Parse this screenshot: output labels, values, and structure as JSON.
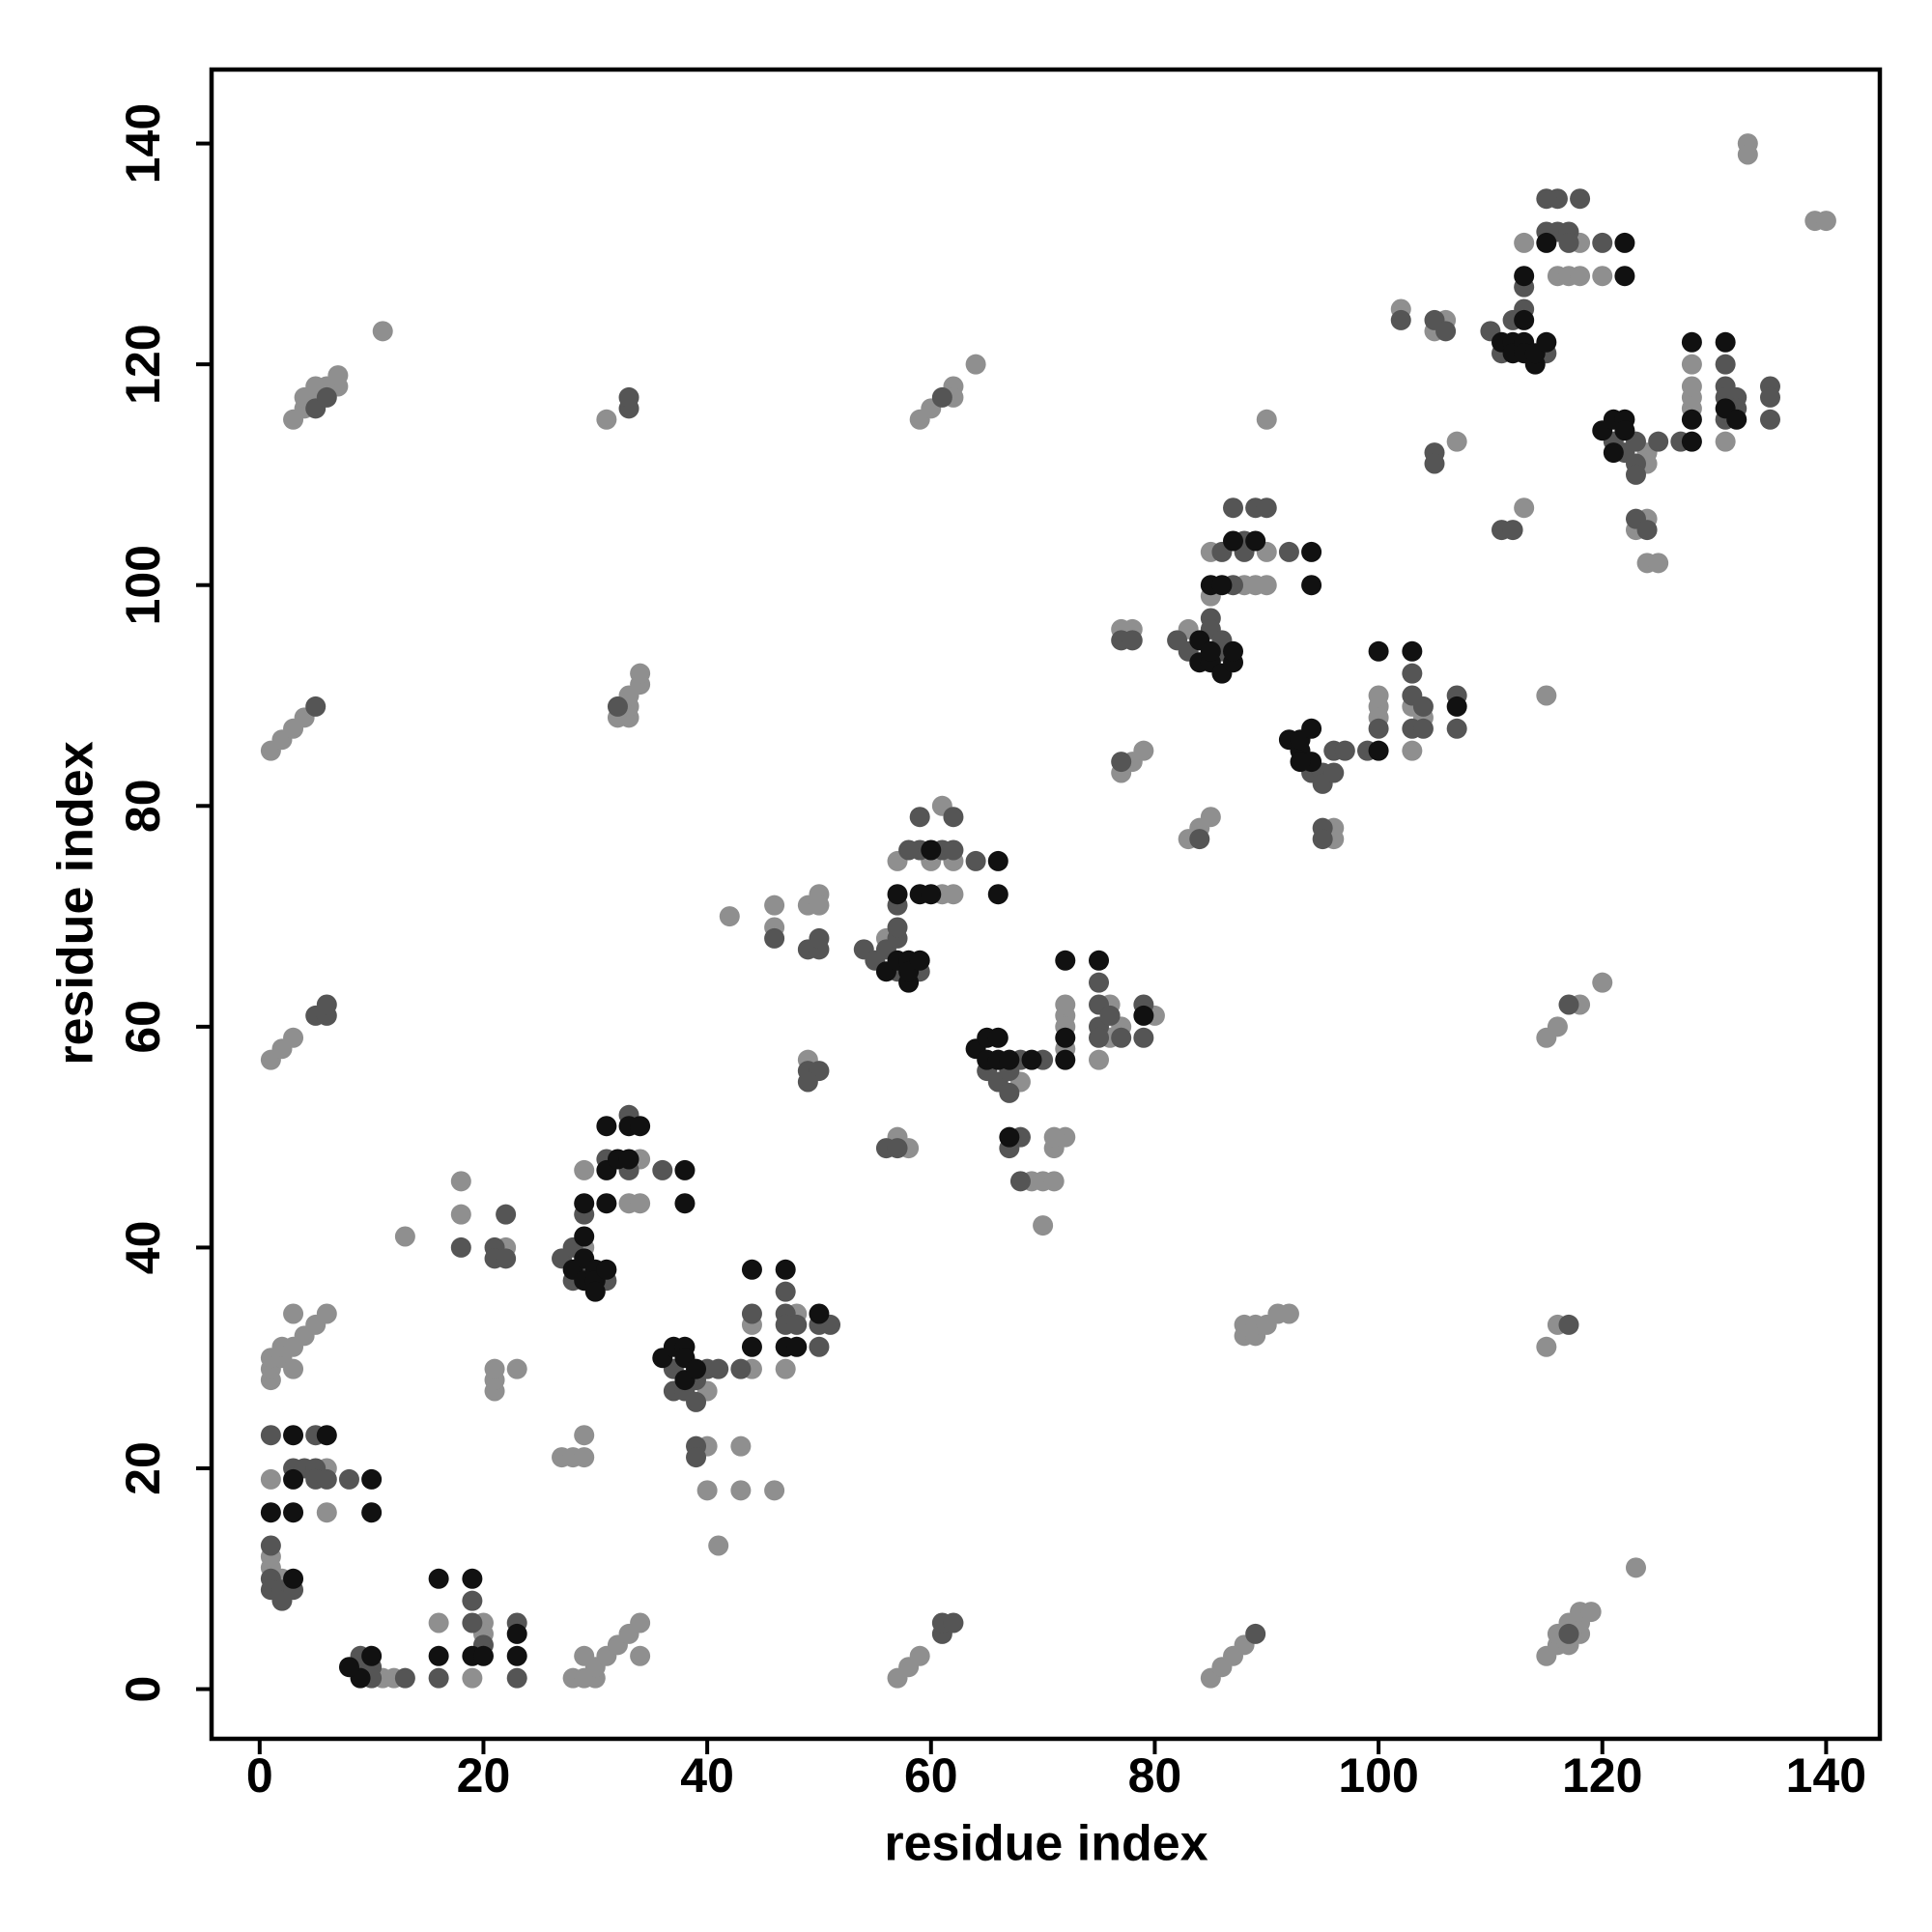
{
  "chart_data": {
    "type": "scatter",
    "x_label": "residue index",
    "y_label": "residue index",
    "xlim": [
      -4.3,
      144.8
    ],
    "ylim": [
      -4.5,
      146.7
    ],
    "xticks": [
      0,
      20,
      40,
      60,
      80,
      100,
      120,
      140
    ],
    "yticks": [
      0,
      20,
      40,
      60,
      80,
      100,
      120,
      140
    ],
    "grid": false,
    "series": [
      {
        "color": "#8f8f8f",
        "x": [
          11,
          12,
          16,
          19,
          20,
          20,
          28,
          29,
          30,
          29,
          30,
          31,
          32,
          33,
          34,
          34,
          57,
          58,
          59,
          85,
          86,
          87,
          88,
          115,
          116,
          116,
          117,
          117,
          118,
          118,
          118,
          119,
          123,
          1,
          1,
          2,
          6,
          1,
          6,
          1,
          1,
          1,
          2,
          3,
          2,
          3,
          4,
          5,
          6,
          3,
          1,
          2,
          3,
          1,
          2,
          3,
          4,
          3,
          4,
          4,
          5,
          6,
          7,
          7,
          5,
          11,
          13,
          18,
          18,
          22,
          21,
          21,
          21,
          23,
          27,
          28,
          29,
          29,
          31,
          32,
          33,
          33,
          33,
          34,
          34,
          29,
          29,
          34,
          33,
          34,
          40,
          40,
          40,
          41,
          43,
          43,
          46,
          44,
          44,
          48,
          47,
          42,
          46,
          46,
          49,
          50,
          50,
          49,
          57,
          58,
          56,
          57,
          60,
          61,
          61,
          62,
          62,
          59,
          60,
          62,
          62,
          64,
          68,
          69,
          70,
          71,
          71,
          72,
          71,
          70,
          72,
          72,
          72,
          72,
          75,
          76,
          76,
          77,
          80,
          77,
          78,
          79,
          77,
          78,
          83,
          84,
          85,
          83,
          85,
          85,
          88,
          89,
          90,
          90,
          90,
          88,
          88,
          89,
          89,
          90,
          91,
          92,
          96,
          96,
          100,
          100,
          100,
          103,
          103,
          104,
          102,
          105,
          106,
          107,
          113,
          115,
          115,
          116,
          118,
          120,
          115,
          116,
          113,
          116,
          117,
          118,
          118,
          120,
          124,
          124,
          123,
          124,
          124,
          125,
          128,
          128,
          128,
          128,
          131,
          133,
          133,
          139,
          140
        ],
        "values": [
          1,
          1,
          6,
          1,
          6,
          5,
          1,
          1,
          1,
          3,
          2,
          3,
          4,
          5,
          6,
          3,
          1,
          2,
          3,
          1,
          2,
          3,
          4,
          3,
          4,
          5,
          6,
          4,
          5,
          6,
          7,
          7,
          11,
          12,
          11,
          10,
          16,
          19,
          20,
          28,
          29,
          30,
          30,
          29,
          31,
          31,
          32,
          33,
          34,
          34,
          57,
          58,
          59,
          85,
          86,
          87,
          88,
          115,
          116,
          117,
          117,
          118,
          118,
          119,
          118,
          123,
          41,
          46,
          43,
          40,
          27,
          28,
          29,
          29,
          21,
          21,
          21,
          23,
          115,
          88,
          88,
          89,
          90,
          91,
          92,
          40,
          47,
          48,
          44,
          44,
          27,
          22,
          18,
          13,
          22,
          18,
          18,
          29,
          33,
          34,
          29,
          70,
          71,
          69,
          71,
          72,
          71,
          57,
          50,
          49,
          68,
          75,
          75,
          72,
          80,
          75,
          72,
          115,
          116,
          118,
          117,
          120,
          55,
          46,
          46,
          46,
          49,
          50,
          50,
          42,
          61,
          62,
          60,
          58,
          57,
          62,
          59,
          60,
          61,
          83,
          84,
          85,
          96,
          96,
          77,
          78,
          79,
          96,
          99,
          103,
          100,
          100,
          103,
          100,
          115,
          32,
          33,
          32,
          33,
          33,
          34,
          34,
          78,
          77,
          89,
          90,
          88,
          89,
          85,
          88,
          125,
          123,
          124,
          113,
          107,
          90,
          59,
          60,
          62,
          64,
          31,
          33,
          131,
          128,
          128,
          128,
          131,
          128,
          112,
          111,
          105,
          106,
          102,
          102,
          116,
          117,
          118,
          120,
          113,
          140,
          139,
          133,
          133
        ]
      },
      {
        "color": "#555555",
        "x": [
          9,
          10,
          10,
          9,
          13,
          16,
          19,
          19,
          20,
          23,
          23,
          61,
          61,
          62,
          89,
          117,
          1,
          1,
          1,
          2,
          2,
          3,
          3,
          4,
          5,
          5,
          6,
          8,
          1,
          5,
          5,
          6,
          6,
          5,
          5,
          6,
          18,
          21,
          22,
          21,
          22,
          33,
          33,
          32,
          27,
          28,
          28,
          29,
          31,
          29,
          31,
          33,
          33,
          36,
          37,
          37,
          38,
          39,
          40,
          39,
          41,
          39,
          39,
          43,
          44,
          47,
          47,
          47,
          48,
          50,
          50,
          51,
          46,
          49,
          50,
          50,
          49,
          50,
          49,
          56,
          57,
          54,
          55,
          56,
          57,
          57,
          59,
          57,
          57,
          59,
          59,
          61,
          62,
          62,
          64,
          58,
          61,
          65,
          66,
          67,
          67,
          68,
          70,
          67,
          68,
          68,
          75,
          75,
          75,
          75,
          76,
          77,
          79,
          79,
          77,
          77,
          78,
          84,
          82,
          83,
          85,
          85,
          86,
          86,
          86,
          87,
          87,
          88,
          88,
          89,
          90,
          92,
          94,
          95,
          95,
          96,
          96,
          97,
          95,
          95,
          99,
          100,
          103,
          103,
          103,
          104,
          104,
          107,
          107,
          102,
          105,
          106,
          105,
          105,
          111,
          112,
          117,
          117,
          110,
          111,
          112,
          113,
          115,
          113,
          115,
          116,
          116,
          117,
          117,
          118,
          115,
          120,
          121,
          122,
          123,
          123,
          123,
          125,
          123,
          124,
          127,
          131,
          131,
          131,
          131,
          132,
          132,
          135,
          135,
          135
        ],
        "values": [
          2,
          2,
          1,
          3,
          1,
          1,
          8,
          6,
          4,
          6,
          1,
          5,
          6,
          6,
          5,
          5,
          13,
          10,
          9,
          9,
          8,
          9,
          20,
          20,
          20,
          19,
          19,
          19,
          23,
          23,
          61,
          61,
          62,
          89,
          116,
          117,
          40,
          40,
          43,
          39,
          39,
          116,
          117,
          89,
          39,
          40,
          37,
          38,
          37,
          43,
          48,
          52,
          47,
          47,
          29,
          27,
          27,
          28,
          29,
          26,
          29,
          22,
          21,
          29,
          34,
          36,
          34,
          33,
          33,
          33,
          31,
          33,
          68,
          67,
          67,
          68,
          56,
          56,
          55,
          49,
          49,
          67,
          66,
          67,
          68,
          65,
          65,
          69,
          71,
          76,
          79,
          76,
          79,
          76,
          75,
          76,
          117,
          56,
          55,
          56,
          54,
          57,
          57,
          49,
          50,
          46,
          64,
          62,
          60,
          59,
          61,
          59,
          62,
          59,
          84,
          95,
          95,
          77,
          95,
          94,
          97,
          96,
          94,
          95,
          103,
          107,
          100,
          104,
          103,
          107,
          107,
          103,
          83,
          83,
          82,
          83,
          85,
          85,
          78,
          77,
          85,
          87,
          92,
          90,
          87,
          87,
          89,
          90,
          87,
          124,
          124,
          123,
          112,
          111,
          105,
          105,
          62,
          33,
          123,
          121,
          124,
          125,
          121,
          127,
          132,
          132,
          135,
          132,
          131,
          135,
          135,
          131,
          113,
          112,
          113,
          111,
          110,
          113,
          106,
          105,
          113,
          120,
          118,
          117,
          115,
          117,
          116,
          118,
          117,
          115
        ]
      },
      {
        "color": "#111111",
        "x": [
          9,
          10,
          8,
          16,
          16,
          19,
          19,
          20,
          23,
          23,
          3,
          1,
          3,
          10,
          3,
          10,
          3,
          6,
          28,
          29,
          29,
          30,
          30,
          30,
          31,
          29,
          29,
          31,
          31,
          31,
          32,
          33,
          33,
          34,
          38,
          38,
          36,
          37,
          38,
          38,
          38,
          39,
          44,
          44,
          47,
          47,
          48,
          50,
          56,
          57,
          58,
          58,
          58,
          59,
          57,
          59,
          60,
          66,
          66,
          60,
          64,
          65,
          65,
          66,
          66,
          67,
          69,
          67,
          72,
          72,
          72,
          75,
          79,
          84,
          84,
          85,
          85,
          86,
          87,
          87,
          85,
          86,
          87,
          89,
          94,
          94,
          92,
          93,
          93,
          94,
          94,
          93,
          100,
          100,
          103,
          107,
          111,
          112,
          112,
          113,
          113,
          113,
          114,
          114,
          115,
          113,
          115,
          122,
          122,
          120,
          121,
          121,
          122,
          122,
          128,
          128,
          128,
          131,
          131,
          132
        ],
        "values": [
          1,
          3,
          2,
          10,
          3,
          10,
          3,
          3,
          5,
          3,
          10,
          16,
          16,
          16,
          19,
          19,
          23,
          23,
          38,
          39,
          37,
          38,
          37,
          36,
          38,
          41,
          44,
          44,
          47,
          51,
          48,
          51,
          48,
          51,
          47,
          44,
          30,
          31,
          31,
          30,
          28,
          29,
          31,
          38,
          38,
          31,
          31,
          34,
          65,
          66,
          66,
          64,
          65,
          66,
          72,
          72,
          76,
          75,
          72,
          72,
          58,
          59,
          57,
          59,
          57,
          57,
          57,
          50,
          57,
          59,
          66,
          66,
          61,
          95,
          93,
          93,
          94,
          92,
          93,
          94,
          100,
          100,
          104,
          104,
          103,
          100,
          86,
          85,
          86,
          87,
          84,
          84,
          85,
          94,
          94,
          89,
          122,
          122,
          121,
          122,
          124,
          121,
          120,
          121,
          122,
          128,
          131,
          131,
          128,
          114,
          115,
          112,
          115,
          114,
          113,
          115,
          122,
          122,
          116,
          115
        ]
      }
    ]
  }
}
